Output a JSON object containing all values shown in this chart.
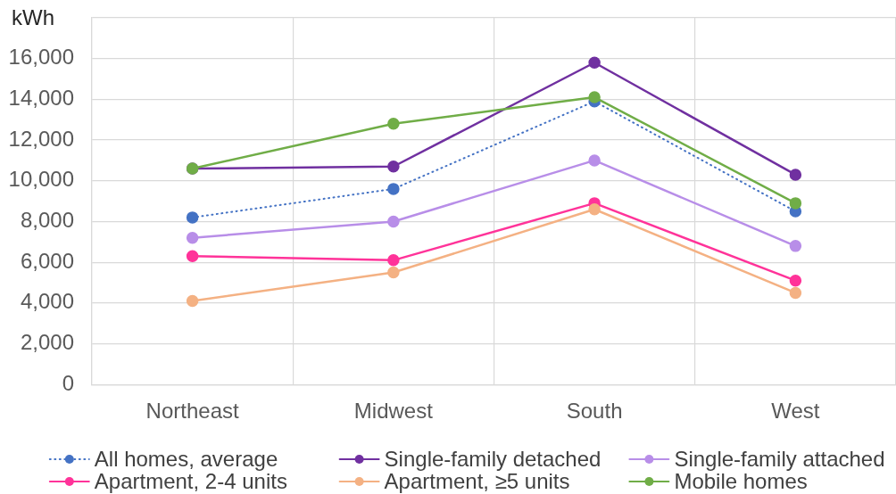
{
  "chart_data": {
    "type": "line",
    "ylabel": "kWh",
    "categories": [
      "Northeast",
      "Midwest",
      "South",
      "West"
    ],
    "series": [
      {
        "name": "All homes, average",
        "color": "#4472c4",
        "line_style": "dotted",
        "values": [
          8200,
          9600,
          13900,
          8500
        ]
      },
      {
        "name": "Single-family detached",
        "color": "#7030a0",
        "values": [
          10600,
          10700,
          15800,
          10300
        ]
      },
      {
        "name": "Single-family attached",
        "color": "#b88ee8",
        "values": [
          7200,
          8000,
          11000,
          6800
        ]
      },
      {
        "name": "Apartment, 2-4 units",
        "color": "#ff3399",
        "values": [
          6300,
          6100,
          8900,
          5100
        ]
      },
      {
        "name": "Apartment, ≥5 units",
        "color": "#f4b183",
        "values": [
          4100,
          5500,
          8600,
          4500
        ]
      },
      {
        "name": "Mobile homes",
        "color": "#70ad47",
        "values": [
          10600,
          12800,
          14100,
          8900
        ]
      }
    ],
    "ylim": [
      0,
      18000
    ],
    "yticks": [
      0,
      {
        "value": 2000,
        "label": "2,000"
      },
      {
        "value": 4000,
        "label": "4,000"
      },
      {
        "value": 6000,
        "label": "6,000"
      },
      {
        "value": 8000,
        "label": "8,000"
      },
      {
        "value": 10000,
        "label": "10,000"
      },
      {
        "value": 12000,
        "label": "12,000"
      },
      {
        "value": 14000,
        "label": "14,000"
      },
      {
        "value": 16000,
        "label": "16,000"
      },
      {
        "value": 18000,
        "label": null
      }
    ],
    "grid": true,
    "legend": "bottom",
    "marker": "circle",
    "line_style": "solid"
  }
}
